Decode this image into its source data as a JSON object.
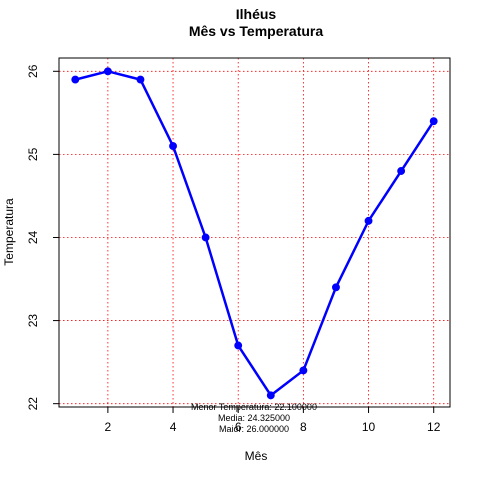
{
  "chart_data": {
    "type": "line",
    "title": "Ilhéus",
    "subtitle": "Mês vs Temperatura",
    "xlabel": "Mês",
    "ylabel": "Temperatura",
    "x": [
      1,
      2,
      3,
      4,
      5,
      6,
      7,
      8,
      9,
      10,
      11,
      12
    ],
    "values": [
      25.9,
      26.0,
      25.9,
      25.1,
      24.0,
      22.7,
      22.1,
      22.4,
      23.4,
      24.2,
      24.8,
      25.4
    ],
    "xlim": [
      0.5,
      12.5
    ],
    "ylim": [
      21.96,
      26.16
    ],
    "xticks": [
      2,
      4,
      6,
      8,
      10,
      12
    ],
    "yticks": [
      22,
      23,
      24,
      25,
      26
    ],
    "grid": true,
    "grid_color": "#ff0000",
    "line_color": "#0000ff",
    "annotations": [
      "Menor Temperatura: 22.100000",
      "Media: 24.325000",
      "Maior: 26.000000"
    ]
  }
}
